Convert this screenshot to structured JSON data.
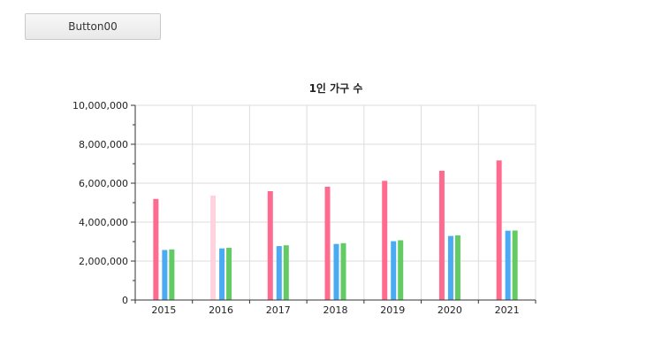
{
  "toolbar": {
    "button_label": "Button00"
  },
  "chart_data": {
    "type": "bar",
    "title": "1인 가구 수",
    "categories": [
      "2015",
      "2016",
      "2017",
      "2018",
      "2019",
      "2020",
      "2021"
    ],
    "series": [
      {
        "color": "#ff6b8e",
        "values": [
          5190000,
          5360000,
          5590000,
          5820000,
          6120000,
          6640000,
          7170000
        ]
      },
      {
        "color": "#4aabf2",
        "values": [
          2570000,
          2650000,
          2770000,
          2880000,
          3020000,
          3290000,
          3560000
        ]
      },
      {
        "color": "#63cb63",
        "values": [
          2600000,
          2680000,
          2810000,
          2920000,
          3070000,
          3320000,
          3570000
        ]
      }
    ],
    "highlight": {
      "category_index": 1,
      "series_index": 0,
      "color": "#ffd3dd"
    },
    "yticks": [
      "0",
      "2,000,000",
      "4,000,000",
      "6,000,000",
      "8,000,000",
      "10,000,000"
    ],
    "ylim": [
      0,
      10000000
    ],
    "grid": true,
    "legend": "none"
  }
}
